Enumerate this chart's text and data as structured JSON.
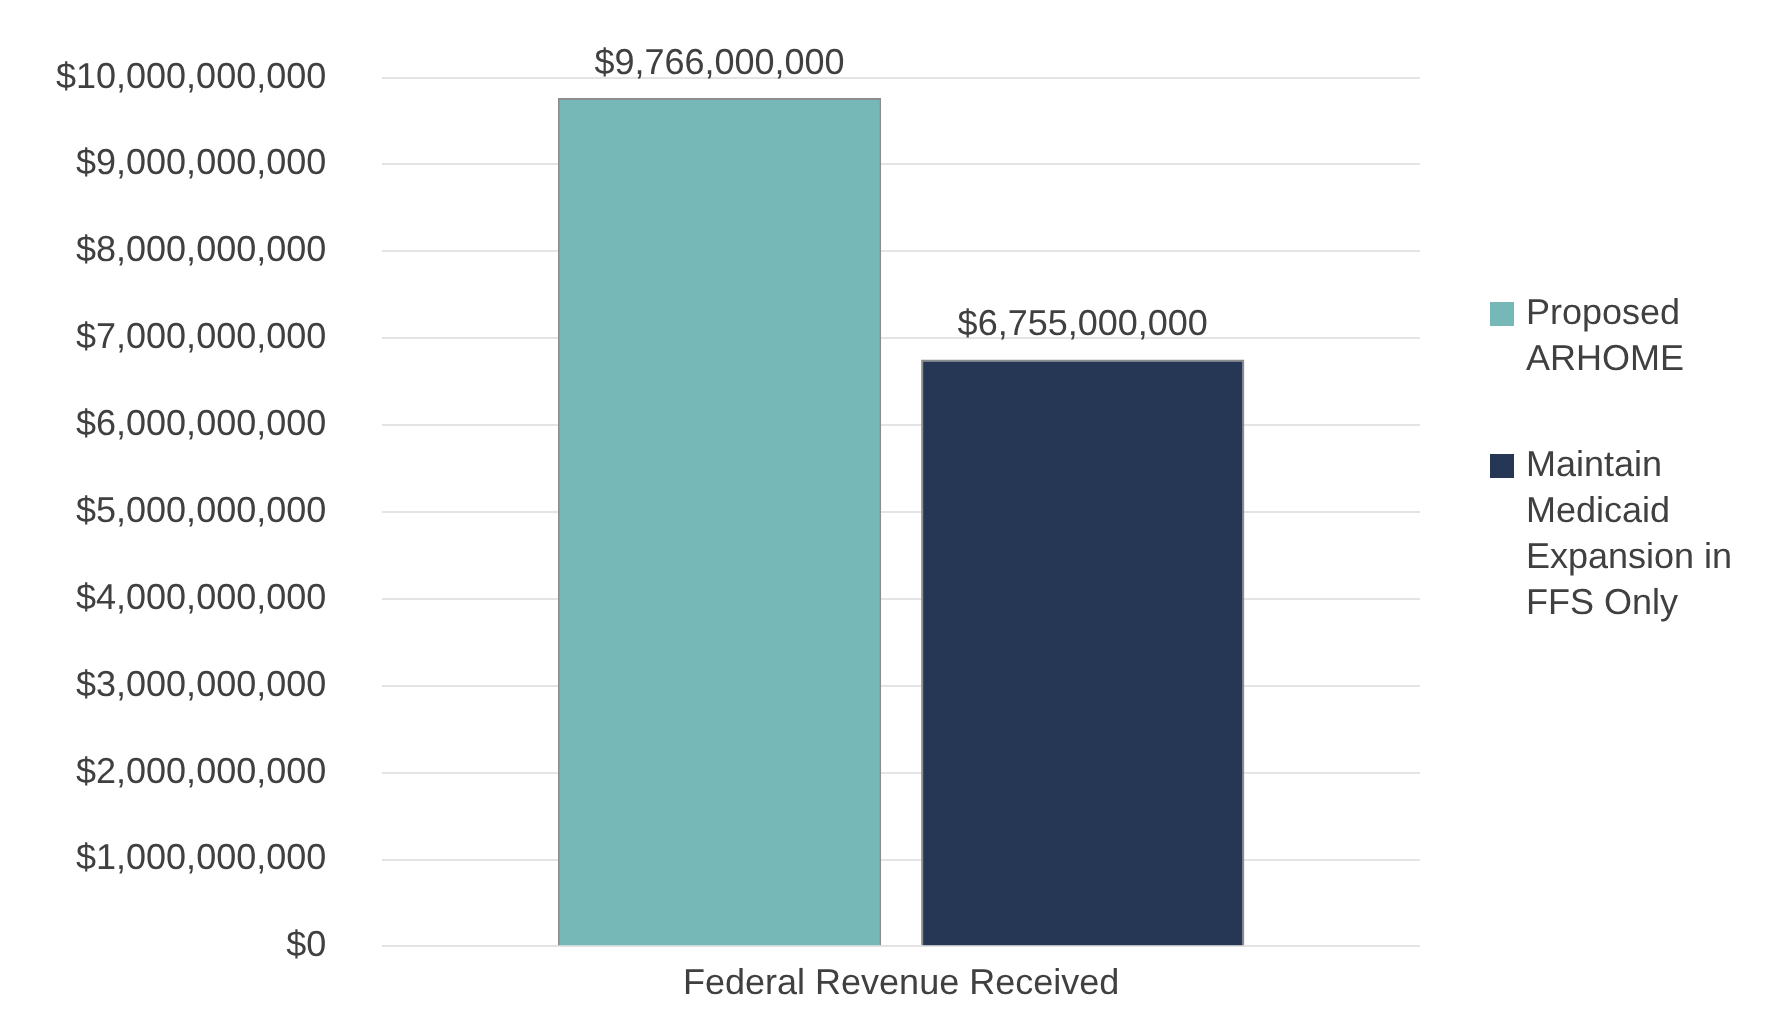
{
  "chart_data": {
    "type": "bar",
    "categories": [
      "Federal Revenue Received"
    ],
    "series": [
      {
        "name": "Proposed ARHOME",
        "color": "#76b7b7",
        "values": [
          9766000000
        ],
        "value_labels": [
          "$9,766,000,000"
        ]
      },
      {
        "name": "Maintain Medicaid Expansion in FFS Only",
        "color": "#263755",
        "values": [
          6755000000
        ],
        "value_labels": [
          "$6,755,000,000"
        ]
      }
    ],
    "ylim": [
      0,
      10000000000
    ],
    "yticks": [
      {
        "value": 0,
        "label": "$0"
      },
      {
        "value": 1000000000,
        "label": "$1,000,000,000"
      },
      {
        "value": 2000000000,
        "label": "$2,000,000,000"
      },
      {
        "value": 3000000000,
        "label": "$3,000,000,000"
      },
      {
        "value": 4000000000,
        "label": "$4,000,000,000"
      },
      {
        "value": 5000000000,
        "label": "$5,000,000,000"
      },
      {
        "value": 6000000000,
        "label": "$6,000,000,000"
      },
      {
        "value": 7000000000,
        "label": "$7,000,000,000"
      },
      {
        "value": 8000000000,
        "label": "$8,000,000,000"
      },
      {
        "value": 9000000000,
        "label": "$9,000,000,000"
      },
      {
        "value": 10000000000,
        "label": "$10,000,000,000"
      }
    ],
    "grid": "y",
    "legend": "right"
  }
}
